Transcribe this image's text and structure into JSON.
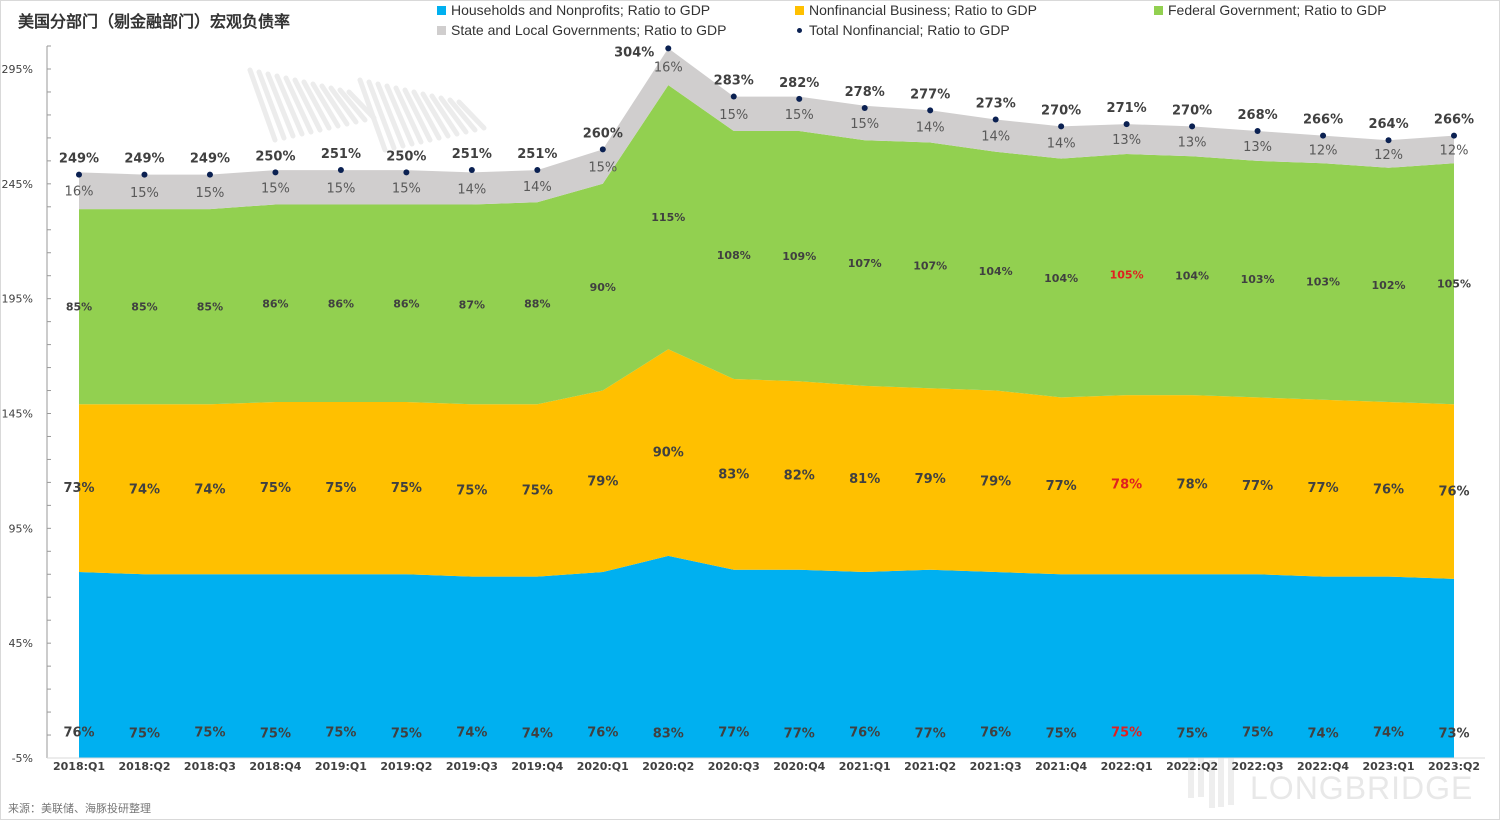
{
  "title": "美国分部门（剔金融部门）宏观负债率",
  "source": "来源：美联储、海豚投研整理",
  "watermark": "LONGBRIDGE",
  "colors": {
    "households": "#00b0f0",
    "business": "#ffc000",
    "federal": "#92d050",
    "state_local": "#d0cece",
    "total_dot": "#0b2152",
    "highlight_label": "#e02020",
    "label_text": "#404040"
  },
  "legend": [
    {
      "key": "households",
      "label": "Households and Nonprofits; Ratio to GDP",
      "type": "swatch"
    },
    {
      "key": "business",
      "label": "Nonfinancial Business; Ratio to GDP",
      "type": "swatch"
    },
    {
      "key": "federal",
      "label": "Federal Government; Ratio to GDP",
      "type": "swatch"
    },
    {
      "key": "state_local",
      "label": "State and Local Governments; Ratio to GDP",
      "type": "swatch"
    },
    {
      "key": "total",
      "label": "Total Nonfinancial; Ratio to GDP",
      "type": "dot"
    }
  ],
  "chart_data": {
    "type": "area",
    "stacked": true,
    "title": "美国分部门（剔金融部门）宏观负债率",
    "xlabel": "",
    "ylabel": "",
    "ylim": [
      -5,
      295
    ],
    "yticks": [
      -5,
      45,
      95,
      145,
      195,
      245,
      295
    ],
    "ytick_labels": [
      "-5%",
      "45%",
      "95%",
      "145%",
      "195%",
      "245%",
      "295%"
    ],
    "grid": false,
    "legend_position": "top-right",
    "categories": [
      "2018:Q1",
      "2018:Q2",
      "2018:Q3",
      "2018:Q4",
      "2019:Q1",
      "2019:Q2",
      "2019:Q3",
      "2019:Q4",
      "2020:Q1",
      "2020:Q2",
      "2020:Q3",
      "2020:Q4",
      "2021:Q1",
      "2021:Q2",
      "2021:Q3",
      "2021:Q4",
      "2022:Q1",
      "2022:Q2",
      "2022:Q3",
      "2022:Q4",
      "2023:Q1",
      "2023:Q2"
    ],
    "series": [
      {
        "key": "households",
        "name": "Households and Nonprofits; Ratio to GDP",
        "values": [
          76,
          75,
          75,
          75,
          75,
          75,
          74,
          74,
          76,
          83,
          77,
          77,
          76,
          77,
          76,
          75,
          75,
          75,
          75,
          74,
          74,
          73
        ]
      },
      {
        "key": "business",
        "name": "Nonfinancial Business; Ratio to GDP",
        "values": [
          73,
          74,
          74,
          75,
          75,
          75,
          75,
          75,
          79,
          90,
          83,
          82,
          81,
          79,
          79,
          77,
          78,
          78,
          77,
          77,
          76,
          76
        ]
      },
      {
        "key": "federal",
        "name": "Federal Government; Ratio to GDP",
        "values": [
          85,
          85,
          85,
          86,
          86,
          86,
          87,
          88,
          90,
          115,
          108,
          109,
          107,
          107,
          104,
          104,
          105,
          104,
          103,
          103,
          102,
          105
        ]
      },
      {
        "key": "state_local",
        "name": "State and Local Governments; Ratio to GDP",
        "values": [
          16,
          15,
          15,
          15,
          15,
          15,
          14,
          14,
          15,
          16,
          15,
          15,
          15,
          14,
          14,
          14,
          13,
          13,
          13,
          12,
          12,
          12
        ]
      },
      {
        "key": "total",
        "name": "Total Nonfinancial; Ratio to GDP",
        "type": "scatter",
        "values": [
          249,
          249,
          249,
          250,
          251,
          250,
          251,
          251,
          260,
          304,
          283,
          282,
          278,
          277,
          273,
          270,
          271,
          270,
          268,
          266,
          264,
          266
        ]
      }
    ],
    "highlighted_category": "2022:Q1",
    "value_label_suffix": "%"
  }
}
